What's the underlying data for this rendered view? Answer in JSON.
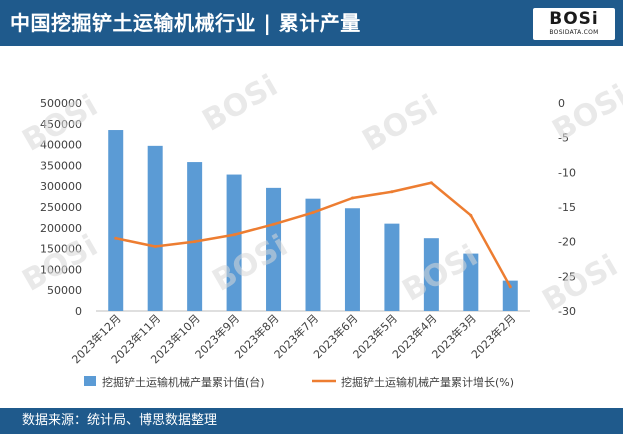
{
  "header": {
    "title": "中国挖掘铲土运输机械行业 | 累计产量"
  },
  "logo": {
    "main": "BOSi",
    "sub": "BOSIDATA.COM"
  },
  "watermark_text": "BOSi",
  "footer": {
    "source": "数据来源：统计局、博思数据整理"
  },
  "colors": {
    "bar": "#5b9bd5",
    "line": "#ed7d31",
    "header_bg": "#1f5a8c"
  },
  "chart_data": {
    "type": "bar",
    "categories": [
      "2023年12月",
      "2023年11月",
      "2023年10月",
      "2023年9月",
      "2023年8月",
      "2023年7月",
      "2023年6月",
      "2023年5月",
      "2023年4月",
      "2023年3月",
      "2023年2月"
    ],
    "series": [
      {
        "name": "挖掘铲土运输机械产量累计值(台)",
        "type": "bar",
        "axis": "left",
        "values": [
          435000,
          397000,
          358000,
          328000,
          296000,
          270000,
          247000,
          210000,
          175000,
          138000,
          73000
        ]
      },
      {
        "name": "挖掘铲土运输机械产量累计增长(%)",
        "type": "line",
        "axis": "right",
        "values": [
          -19.5,
          -20.7,
          -20.0,
          -19.0,
          -17.5,
          -15.8,
          -13.7,
          -12.8,
          -11.5,
          -16.2,
          -26.5
        ]
      }
    ],
    "y_left": {
      "min": 0,
      "max": 500000,
      "step": 50000,
      "ticks": [
        "0",
        "50000",
        "100000",
        "150000",
        "200000",
        "250000",
        "300000",
        "350000",
        "400000",
        "450000",
        "500000"
      ]
    },
    "y_right": {
      "min": -30,
      "max": 0,
      "step": 5,
      "ticks": [
        "-30",
        "-25",
        "-20",
        "-15",
        "-10",
        "-5",
        "0"
      ]
    },
    "legend": {
      "position": "bottom"
    },
    "grid": false
  }
}
